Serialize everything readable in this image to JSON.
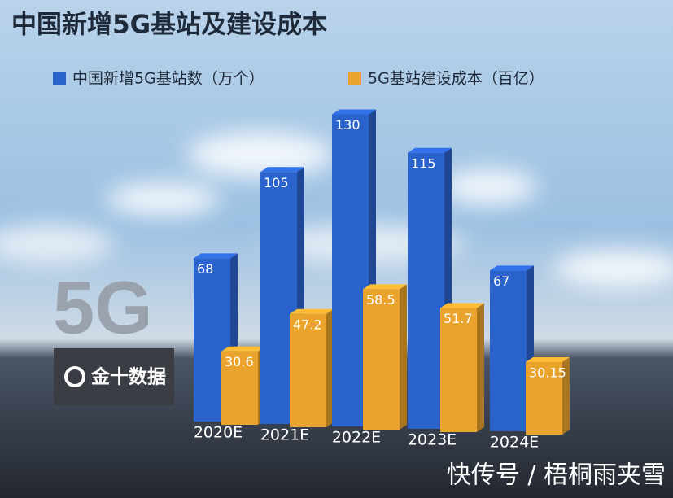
{
  "chart_data": {
    "type": "bar3d",
    "title": "中国新增5G基站及建设成本",
    "categories": [
      "2020E",
      "2021E",
      "2022E",
      "2023E",
      "2024E"
    ],
    "series": [
      {
        "name": "中国新增5G基站数（万个）",
        "color": "#2b63cc",
        "values": [
          68,
          105,
          130,
          115,
          67
        ]
      },
      {
        "name": "5G基站建设成本（百亿）",
        "color": "#eaa42e",
        "values": [
          30.6,
          47.2,
          58.5,
          51.7,
          30.15
        ]
      }
    ],
    "annotations": [
      "5G",
      "金十数据",
      "快传号 / 梧桐雨夹雪"
    ]
  }
}
